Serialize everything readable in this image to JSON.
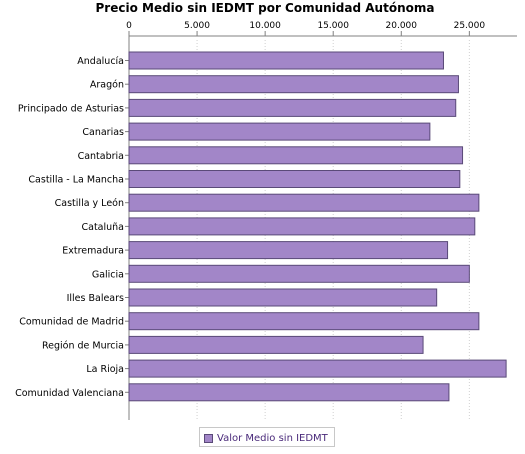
{
  "chart_data": {
    "type": "bar",
    "orientation": "horizontal",
    "title": "Precio Medio sin IEDMT por Comunidad Autónoma",
    "categories": [
      "Andalucía",
      "Aragón",
      "Principado de Asturias",
      "Canarias",
      "Cantabria",
      "Castilla - La Mancha",
      "Castilla y León",
      "Cataluña",
      "Extremadura",
      "Galicia",
      "Illes Balears",
      "Comunidad de Madrid",
      "Región de Murcia",
      "La Rioja",
      "Comunidad Valenciana"
    ],
    "series": [
      {
        "name": "Valor Medio sin IEDMT",
        "values": [
          23100,
          24200,
          24000,
          22100,
          24500,
          24300,
          25700,
          25400,
          23400,
          25000,
          22600,
          25700,
          21600,
          27700,
          23500
        ]
      }
    ],
    "xlim": [
      0,
      28500
    ],
    "xticks": [
      {
        "value": 0,
        "label": "0"
      },
      {
        "value": 5000,
        "label": "5.000"
      },
      {
        "value": 10000,
        "label": "10.000"
      },
      {
        "value": 15000,
        "label": "15.000"
      },
      {
        "value": 20000,
        "label": "20.000"
      },
      {
        "value": 25000,
        "label": "25.000"
      }
    ],
    "xaxis_position": "top",
    "grid": true,
    "legend_position": "bottom",
    "colors": {
      "bar_fill": "#a286c8",
      "bar_stroke": "#5a4a78",
      "legend_text": "#4a2a7a",
      "grid": "#d0d0d0",
      "axis": "#808080"
    }
  }
}
